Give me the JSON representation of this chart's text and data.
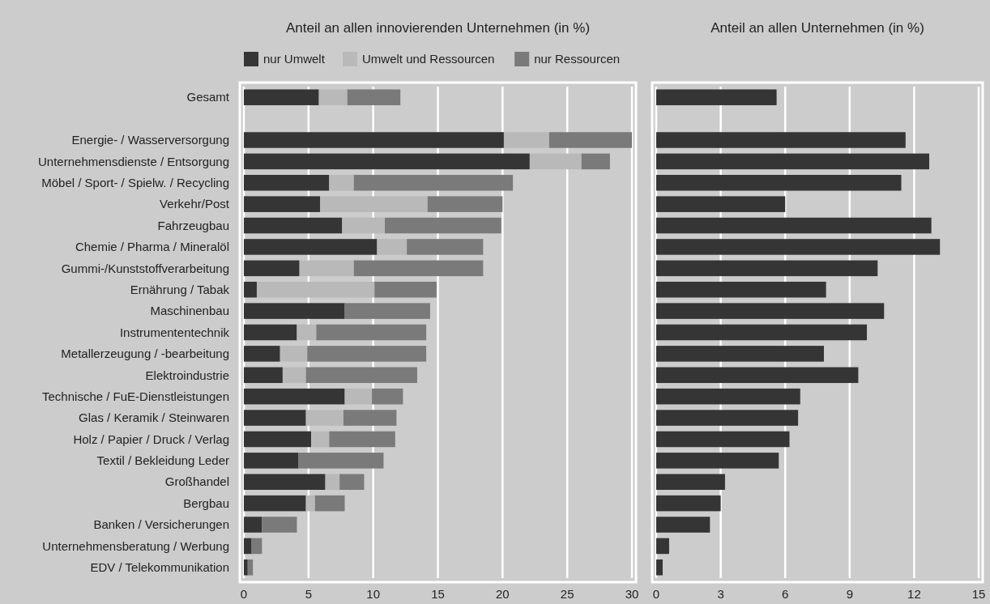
{
  "chart_data": [
    {
      "type": "bar",
      "orientation": "horizontal",
      "stacked": true,
      "title": "Anteil an allen innovierenden Unternehmen (in %)",
      "categories": [
        "Gesamt",
        null,
        "Energie- / Wasserversorgung",
        "Unternehmensdienste / Entsorgung",
        "Möbel / Sport- / Spielw. / Recycling",
        "Verkehr/Post",
        "Fahrzeugbau",
        "Chemie / Pharma / Mineralöl",
        "Gummi-/Kunststoffverarbeitung",
        "Ernährung / Tabak",
        "Maschinenbau",
        "Instrumententechnik",
        "Metallerzeugung / -bearbeitung",
        "Elektroindustrie",
        "Technische / FuE-Dienstleistungen",
        "Glas / Keramik / Steinwaren",
        "Holz / Papier / Druck / Verlag",
        "Textil / Bekleidung Leder",
        "Großhandel",
        "Bergbau",
        "Banken / Versicherungen",
        "Unternehmensberatung / Werbung",
        "EDV / Telekommunikation"
      ],
      "series": [
        {
          "name": "nur Umwelt",
          "color": "#353535",
          "values": [
            5.8,
            null,
            20.1,
            22.1,
            6.6,
            5.9,
            7.6,
            10.3,
            4.3,
            1.0,
            7.8,
            4.1,
            2.8,
            3.0,
            7.8,
            4.8,
            5.2,
            4.2,
            6.3,
            4.8,
            1.4,
            0.6,
            0.3
          ]
        },
        {
          "name": "Umwelt und Ressourcen",
          "color": "#b9b9b9",
          "values": [
            2.2,
            null,
            3.5,
            4.0,
            1.9,
            8.3,
            3.3,
            2.3,
            4.2,
            9.1,
            0,
            1.5,
            2.1,
            1.8,
            2.1,
            2.9,
            1.4,
            0,
            1.1,
            0.7,
            0,
            0,
            0
          ]
        },
        {
          "name": "nur Ressourcen",
          "color": "#7a7a7a",
          "values": [
            4.1,
            null,
            6.4,
            2.2,
            12.3,
            5.8,
            9.0,
            5.9,
            10.0,
            4.8,
            6.6,
            8.5,
            9.2,
            8.6,
            2.4,
            4.1,
            5.1,
            6.6,
            1.9,
            2.3,
            2.7,
            0.8,
            0.4
          ]
        }
      ],
      "xlim": [
        0,
        30
      ],
      "xticks": [
        0,
        5,
        10,
        15,
        20,
        25,
        30
      ],
      "grid": "x",
      "legend": "top"
    },
    {
      "type": "bar",
      "orientation": "horizontal",
      "title": "Anteil an allen Unternehmen (in %)",
      "categories": [
        null,
        null,
        null,
        null,
        null,
        null,
        null,
        null,
        null,
        null,
        null,
        null,
        null,
        null,
        null,
        null,
        null,
        null,
        null,
        null,
        null,
        null,
        null
      ],
      "values": [
        5.6,
        null,
        11.6,
        12.7,
        11.4,
        6.0,
        12.8,
        13.2,
        10.3,
        7.9,
        10.6,
        9.8,
        7.8,
        9.4,
        6.7,
        6.6,
        6.2,
        5.7,
        3.2,
        3.0,
        2.5,
        0.6,
        0.3
      ],
      "color": "#353535",
      "xlim": [
        0,
        15
      ],
      "xticks": [
        0,
        3,
        6,
        9,
        12,
        15
      ],
      "grid": "x"
    }
  ]
}
